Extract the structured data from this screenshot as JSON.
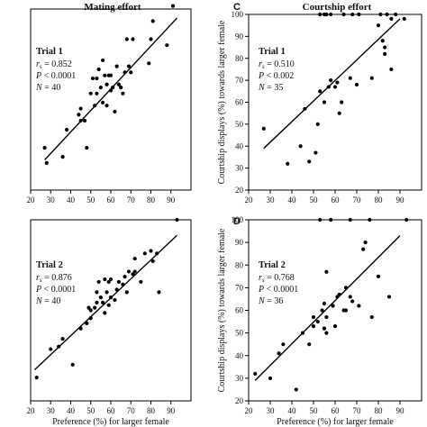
{
  "chart_data": [
    {
      "id": "A",
      "type": "scatter",
      "title": "Mating effort",
      "letter": "",
      "xlabel": "",
      "ylabel": "",
      "xlim": [
        20,
        100
      ],
      "ylim": [
        30,
        90
      ],
      "xticks": [
        20,
        30,
        40,
        50,
        60,
        70,
        80,
        90
      ],
      "yticks": [],
      "trial": "Trial 1",
      "stats": {
        "r": "0.852",
        "p": "< 0.0001",
        "n": "40"
      },
      "line": [
        [
          27,
          40
        ],
        [
          93,
          87
        ]
      ],
      "points": [
        [
          27,
          44
        ],
        [
          28,
          39
        ],
        [
          36,
          41
        ],
        [
          38,
          50
        ],
        [
          44,
          55
        ],
        [
          45,
          57
        ],
        [
          45,
          53
        ],
        [
          47,
          53
        ],
        [
          48,
          44
        ],
        [
          50,
          62
        ],
        [
          51,
          67
        ],
        [
          52,
          58
        ],
        [
          53,
          67
        ],
        [
          53,
          62
        ],
        [
          54,
          70
        ],
        [
          55,
          64
        ],
        [
          56,
          73
        ],
        [
          56,
          59
        ],
        [
          57,
          68
        ],
        [
          58,
          65
        ],
        [
          58,
          58
        ],
        [
          59,
          68
        ],
        [
          60,
          68
        ],
        [
          60,
          63
        ],
        [
          61,
          64
        ],
        [
          62,
          56
        ],
        [
          63,
          71
        ],
        [
          64,
          65
        ],
        [
          65,
          64
        ],
        [
          66,
          62
        ],
        [
          67,
          69
        ],
        [
          68,
          80
        ],
        [
          69,
          71
        ],
        [
          70,
          69
        ],
        [
          71,
          80
        ],
        [
          79,
          72
        ],
        [
          80,
          80
        ],
        [
          81,
          86
        ],
        [
          88,
          78
        ],
        [
          91,
          91
        ]
      ]
    },
    {
      "id": "C",
      "type": "scatter",
      "title": "Courtship effort",
      "letter": "C",
      "xlabel": "",
      "ylabel": "Courtship displays (%) towards larger female",
      "xlim": [
        20,
        100
      ],
      "ylim": [
        20,
        100
      ],
      "xticks": [
        20,
        30,
        40,
        50,
        60,
        70,
        80,
        90
      ],
      "yticks": [
        20,
        30,
        40,
        50,
        60,
        70,
        80,
        90,
        100
      ],
      "trial": "Trial 1",
      "stats": {
        "r": "0.510",
        "p": "< 0.002",
        "n": "35"
      },
      "line": [
        [
          27,
          39
        ],
        [
          90,
          98
        ]
      ],
      "points": [
        [
          27,
          48
        ],
        [
          38,
          32
        ],
        [
          44,
          40
        ],
        [
          46,
          57
        ],
        [
          48,
          33
        ],
        [
          51,
          37
        ],
        [
          52,
          50
        ],
        [
          53,
          65
        ],
        [
          53,
          100
        ],
        [
          55,
          100
        ],
        [
          55,
          60
        ],
        [
          56,
          100
        ],
        [
          57,
          67
        ],
        [
          58,
          100
        ],
        [
          58,
          70
        ],
        [
          60,
          67
        ],
        [
          61,
          69
        ],
        [
          62,
          55
        ],
        [
          63,
          60
        ],
        [
          64,
          100
        ],
        [
          67,
          71
        ],
        [
          68,
          100
        ],
        [
          70,
          68
        ],
        [
          71,
          100
        ],
        [
          77,
          71
        ],
        [
          80,
          95
        ],
        [
          81,
          100
        ],
        [
          82,
          88
        ],
        [
          83,
          85
        ],
        [
          83,
          82
        ],
        [
          84,
          100
        ],
        [
          86,
          98
        ],
        [
          86,
          75
        ],
        [
          88,
          100
        ],
        [
          92,
          98
        ]
      ]
    },
    {
      "id": "B",
      "type": "scatter",
      "title": "",
      "letter": "",
      "xlabel": "Preference (%) for larger female",
      "ylabel": "",
      "xlim": [
        20,
        100
      ],
      "ylim": [
        20,
        90
      ],
      "xticks": [
        20,
        30,
        40,
        50,
        60,
        70,
        80,
        90
      ],
      "yticks": [],
      "trial": "Trial 2",
      "stats": {
        "r": "0.876",
        "p": "< 0.0001",
        "n": "40"
      },
      "line": [
        [
          22,
          32
        ],
        [
          93,
          84
        ]
      ],
      "points": [
        [
          23,
          29
        ],
        [
          30,
          40
        ],
        [
          34,
          41
        ],
        [
          36,
          44
        ],
        [
          41,
          34
        ],
        [
          45,
          48
        ],
        [
          48,
          50
        ],
        [
          49,
          56
        ],
        [
          50,
          55
        ],
        [
          50,
          52
        ],
        [
          52,
          56
        ],
        [
          53,
          58
        ],
        [
          53,
          62
        ],
        [
          54,
          66
        ],
        [
          55,
          60
        ],
        [
          56,
          58
        ],
        [
          57,
          67
        ],
        [
          57,
          54
        ],
        [
          58,
          62
        ],
        [
          59,
          57
        ],
        [
          59,
          66
        ],
        [
          60,
          60
        ],
        [
          60,
          67
        ],
        [
          62,
          59
        ],
        [
          63,
          63
        ],
        [
          64,
          66
        ],
        [
          66,
          65
        ],
        [
          67,
          68
        ],
        [
          68,
          62
        ],
        [
          69,
          70
        ],
        [
          71,
          69
        ],
        [
          72,
          75
        ],
        [
          72,
          70
        ],
        [
          75,
          66
        ],
        [
          77,
          77
        ],
        [
          80,
          78
        ],
        [
          81,
          74
        ],
        [
          83,
          77
        ],
        [
          84,
          62
        ],
        [
          93,
          90
        ]
      ]
    },
    {
      "id": "D",
      "type": "scatter",
      "title": "",
      "letter": "D",
      "xlabel": "Preference (%) for larger female",
      "ylabel": "Courtship displays (%) towards larger female",
      "xlim": [
        20,
        100
      ],
      "ylim": [
        20,
        100
      ],
      "xticks": [
        20,
        30,
        40,
        50,
        60,
        70,
        80,
        90
      ],
      "yticks": [
        20,
        30,
        40,
        50,
        60,
        70,
        80,
        90,
        100
      ],
      "trial": "Trial 2",
      "stats": {
        "r": "0.768",
        "p": "< 0.0001",
        "n": "36"
      },
      "line": [
        [
          23,
          29
        ],
        [
          90,
          93
        ]
      ],
      "points": [
        [
          23,
          32
        ],
        [
          30,
          30
        ],
        [
          34,
          41
        ],
        [
          36,
          45
        ],
        [
          42,
          25
        ],
        [
          45,
          50
        ],
        [
          48,
          45
        ],
        [
          50,
          57
        ],
        [
          50,
          53
        ],
        [
          52,
          55
        ],
        [
          53,
          100
        ],
        [
          54,
          60
        ],
        [
          55,
          63
        ],
        [
          55,
          52
        ],
        [
          56,
          57
        ],
        [
          56,
          50
        ],
        [
          56,
          77
        ],
        [
          58,
          100
        ],
        [
          59,
          62
        ],
        [
          60,
          53
        ],
        [
          61,
          66
        ],
        [
          62,
          67
        ],
        [
          64,
          60
        ],
        [
          65,
          70
        ],
        [
          65,
          60
        ],
        [
          67,
          100
        ],
        [
          67,
          66
        ],
        [
          68,
          64
        ],
        [
          71,
          62
        ],
        [
          73,
          87
        ],
        [
          74,
          90
        ],
        [
          76,
          100
        ],
        [
          77,
          57
        ],
        [
          80,
          75
        ],
        [
          85,
          66
        ],
        [
          93,
          100
        ]
      ]
    }
  ]
}
